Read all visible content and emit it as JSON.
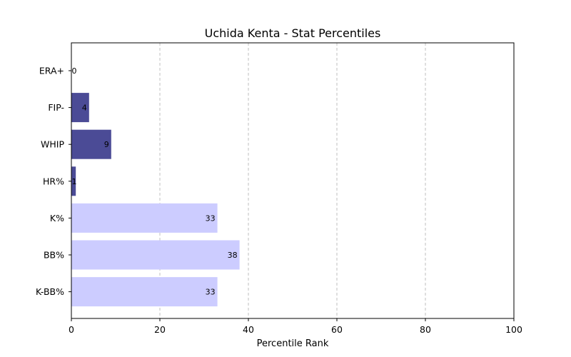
{
  "chart_data": {
    "type": "bar",
    "orientation": "horizontal",
    "title": "Uchida Kenta - Stat Percentiles",
    "xlabel": "Percentile Rank",
    "ylabel": "",
    "xlim": [
      0,
      100
    ],
    "xticks": [
      0,
      20,
      40,
      60,
      80,
      100
    ],
    "grid": "vertical dashed",
    "categories": [
      "ERA+",
      "FIP-",
      "WHIP",
      "HR%",
      "K%",
      "BB%",
      "K-BB%"
    ],
    "values": [
      0,
      4,
      9,
      1,
      33,
      38,
      33
    ],
    "bar_colors": [
      "#4b4b96",
      "#4b4b96",
      "#4b4b96",
      "#4b4b96",
      "#ccccff",
      "#ccccff",
      "#ccccff"
    ]
  }
}
